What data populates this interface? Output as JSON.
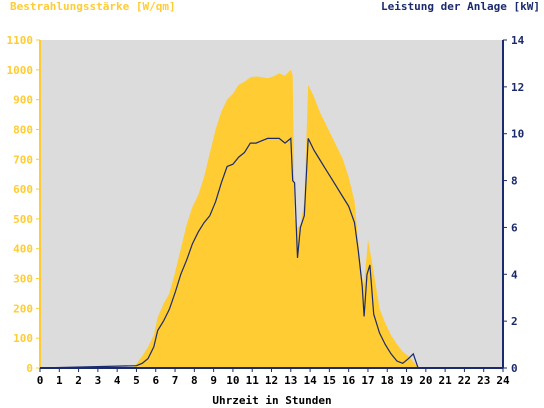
{
  "chart_data": {
    "type": "area",
    "y_left_label": "Bestrahlungsstärke [W/qm]",
    "y_right_label": "Leistung der Anlage [kW]",
    "xlabel": "Uhrzeit in Stunden",
    "xlim": [
      0,
      24
    ],
    "ylim_left": [
      0,
      1100
    ],
    "ylim_right": [
      0,
      14
    ],
    "x_ticks": [
      "0",
      "1",
      "2",
      "3",
      "4",
      "5",
      "6",
      "7",
      "8",
      "9",
      "10",
      "11",
      "12",
      "13",
      "14",
      "15",
      "16",
      "17",
      "18",
      "19",
      "20",
      "21",
      "22",
      "23",
      "24"
    ],
    "y_left_ticks": [
      "0",
      "100",
      "200",
      "300",
      "400",
      "500",
      "600",
      "700",
      "800",
      "900",
      "1000",
      "1100"
    ],
    "y_right_ticks": [
      "0",
      "2",
      "4",
      "6",
      "8",
      "10",
      "12",
      "14"
    ],
    "colors": {
      "irradiance": "#FFCC33",
      "power": "#1A2A6C",
      "plot_bg": "#DCDCDC"
    },
    "series": [
      {
        "kind": "irradiance_area",
        "x": [
          0,
          4.8,
          5.0,
          5.3,
          5.6,
          5.9,
          6.1,
          6.4,
          6.7,
          7.0,
          7.3,
          7.6,
          7.9,
          8.2,
          8.5,
          8.8,
          9.1,
          9.4,
          9.7,
          10.0,
          10.3,
          10.6,
          10.9,
          11.2,
          11.5,
          11.8,
          12.1,
          12.4,
          12.7,
          13.0,
          13.1,
          13.2,
          13.35,
          13.5,
          13.7,
          13.9,
          14.2,
          14.5,
          14.8,
          15.1,
          15.4,
          15.7,
          16.0,
          16.3,
          16.5,
          16.7,
          16.8,
          17.0,
          17.2,
          17.4,
          17.6,
          17.9,
          18.2,
          18.5,
          18.8,
          19.1,
          19.3,
          19.5,
          19.6,
          24
        ],
        "y": [
          0,
          0,
          15,
          40,
          70,
          110,
          170,
          215,
          250,
          320,
          400,
          480,
          540,
          580,
          640,
          720,
          800,
          860,
          900,
          920,
          950,
          960,
          975,
          978,
          975,
          972,
          978,
          988,
          980,
          1000,
          980,
          500,
          470,
          480,
          560,
          950,
          910,
          860,
          820,
          780,
          740,
          700,
          640,
          560,
          420,
          300,
          280,
          430,
          360,
          280,
          200,
          150,
          110,
          80,
          55,
          40,
          25,
          10,
          0,
          0
        ]
      },
      {
        "kind": "power_line",
        "x": [
          0,
          5.0,
          5.3,
          5.6,
          5.9,
          6.1,
          6.4,
          6.7,
          7.0,
          7.3,
          7.6,
          7.9,
          8.2,
          8.5,
          8.8,
          9.1,
          9.4,
          9.7,
          10.0,
          10.3,
          10.6,
          10.9,
          11.2,
          11.5,
          11.8,
          12.1,
          12.4,
          12.7,
          13.0,
          13.1,
          13.2,
          13.35,
          13.5,
          13.7,
          13.9,
          14.2,
          14.5,
          14.8,
          15.1,
          15.4,
          15.7,
          16.0,
          16.3,
          16.5,
          16.7,
          16.8,
          16.95,
          17.1,
          17.3,
          17.6,
          17.9,
          18.2,
          18.5,
          18.8,
          19.1,
          19.35,
          19.6,
          24
        ],
        "y": [
          0,
          0.1,
          0.2,
          0.4,
          0.9,
          1.6,
          2.0,
          2.5,
          3.2,
          4.0,
          4.6,
          5.3,
          5.8,
          6.2,
          6.5,
          7.1,
          7.9,
          8.6,
          8.7,
          9.0,
          9.2,
          9.6,
          9.6,
          9.7,
          9.8,
          9.8,
          9.8,
          9.6,
          9.8,
          8.0,
          7.9,
          4.7,
          6.0,
          6.5,
          9.8,
          9.3,
          8.9,
          8.5,
          8.1,
          7.7,
          7.3,
          6.9,
          6.2,
          5.0,
          3.5,
          2.2,
          4.0,
          4.4,
          2.3,
          1.5,
          1.0,
          0.6,
          0.3,
          0.2,
          0.4,
          0.6,
          0.0,
          0.0
        ]
      }
    ]
  }
}
